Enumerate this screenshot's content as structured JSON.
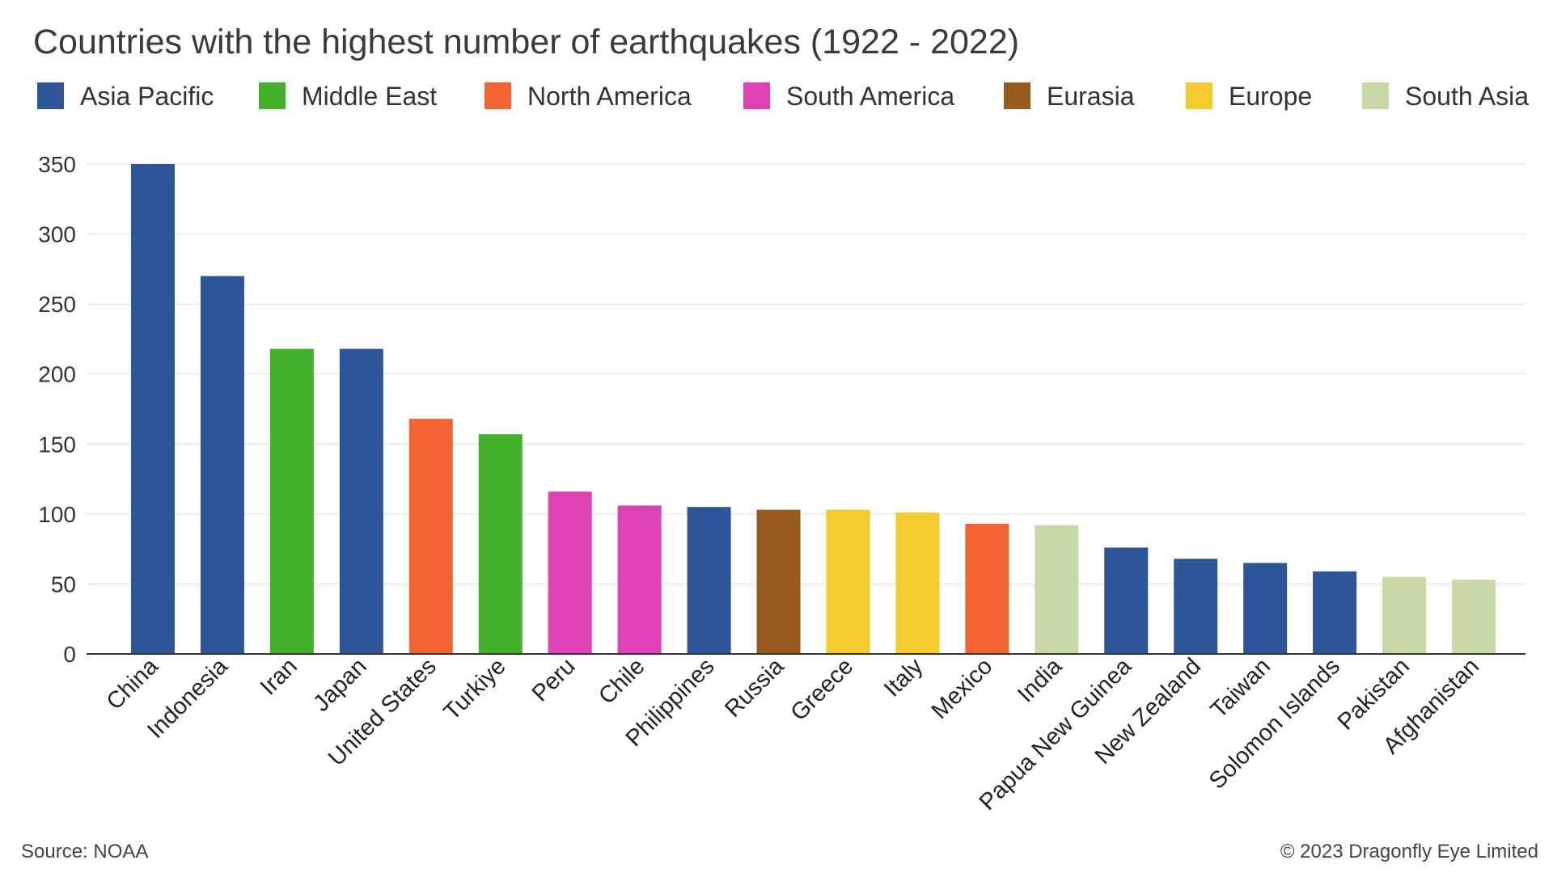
{
  "chart_data": {
    "type": "bar",
    "title": "Countries with the highest number of earthquakes (1922 - 2022)",
    "xlabel": "",
    "ylabel": "",
    "ylim": [
      0,
      350
    ],
    "yticks": [
      0,
      50,
      100,
      150,
      200,
      250,
      300,
      350
    ],
    "grid": true,
    "legend_position": "top",
    "legend": [
      {
        "name": "Asia Pacific",
        "color": "#2c5697"
      },
      {
        "name": "Middle East",
        "color": "#43b02a"
      },
      {
        "name": "North America",
        "color": "#f26532"
      },
      {
        "name": "South America",
        "color": "#dd41b3"
      },
      {
        "name": "Eurasia",
        "color": "#985a1e"
      },
      {
        "name": "Europe",
        "color": "#f3cb2e"
      },
      {
        "name": "South Asia",
        "color": "#c8d8a7"
      }
    ],
    "categories": [
      "China",
      "Indonesia",
      "Iran",
      "Japan",
      "United States",
      "Turkiye",
      "Peru",
      "Chile",
      "Philippines",
      "Russia",
      "Greece",
      "Italy",
      "Mexico",
      "India",
      "Papua New Guinea",
      "New Zealand",
      "Taiwan",
      "Solomon Islands",
      "Pakistan",
      "Afghanistan"
    ],
    "values": [
      350,
      270,
      218,
      218,
      168,
      157,
      116,
      106,
      105,
      103,
      103,
      101,
      93,
      92,
      76,
      68,
      65,
      59,
      55,
      53
    ],
    "regions": [
      "Asia Pacific",
      "Asia Pacific",
      "Middle East",
      "Asia Pacific",
      "North America",
      "Middle East",
      "South America",
      "South America",
      "Asia Pacific",
      "Eurasia",
      "Europe",
      "Europe",
      "North America",
      "South Asia",
      "Asia Pacific",
      "Asia Pacific",
      "Asia Pacific",
      "Asia Pacific",
      "South Asia",
      "South Asia"
    ],
    "source": "Source: NOAA",
    "credit": "© 2023 Dragonfly Eye Limited"
  }
}
